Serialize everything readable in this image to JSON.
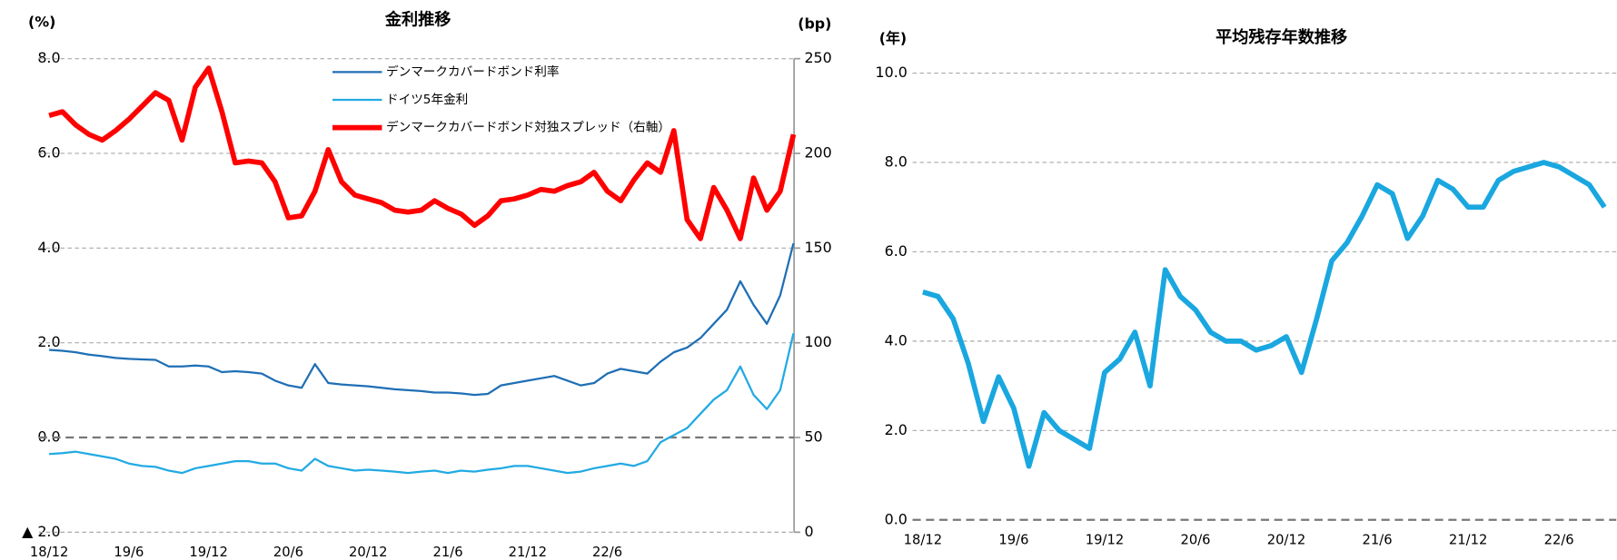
{
  "chart_data": [
    {
      "type": "line",
      "title": "金利推移",
      "y_label": "(%)",
      "y2_label": "(bp)",
      "categories": [
        "18/12",
        null,
        null,
        null,
        null,
        null,
        "19/6",
        null,
        null,
        null,
        null,
        null,
        "19/12",
        null,
        null,
        null,
        null,
        null,
        "20/6",
        null,
        null,
        null,
        null,
        null,
        "20/12",
        null,
        null,
        null,
        null,
        null,
        "21/6",
        null,
        null,
        null,
        null,
        null,
        "21/12",
        null,
        null,
        null,
        null,
        null,
        "22/6",
        null,
        null,
        null,
        null,
        null,
        null,
        null,
        null,
        null,
        null,
        null,
        null,
        null,
        null
      ],
      "series": [
        {
          "name": "デンマークカバードボンド利率",
          "color": "#1f6fb5",
          "width": 2,
          "values": [
            1.85,
            1.83,
            1.8,
            1.75,
            1.72,
            1.68,
            1.66,
            1.65,
            1.64,
            1.5,
            1.5,
            1.52,
            1.5,
            1.38,
            1.4,
            1.38,
            1.35,
            1.2,
            1.1,
            1.05,
            1.55,
            1.15,
            1.12,
            1.1,
            1.08,
            1.05,
            1.02,
            1.0,
            0.98,
            0.95,
            0.95,
            0.93,
            0.9,
            0.92,
            1.1,
            1.15,
            1.2,
            1.25,
            1.3,
            1.2,
            1.1,
            1.15,
            1.35,
            1.45,
            1.4,
            1.35,
            1.6,
            1.8,
            1.9,
            2.1,
            2.4,
            2.7,
            3.3,
            2.8,
            2.4,
            3.0,
            4.1
          ]
        },
        {
          "name": "ドイツ5年金利",
          "color": "#22aae3",
          "width": 2,
          "values": [
            -0.35,
            -0.33,
            -0.3,
            -0.35,
            -0.4,
            -0.45,
            -0.55,
            -0.6,
            -0.62,
            -0.7,
            -0.75,
            -0.65,
            -0.6,
            -0.55,
            -0.5,
            -0.5,
            -0.55,
            -0.55,
            -0.65,
            -0.7,
            -0.45,
            -0.6,
            -0.65,
            -0.7,
            -0.68,
            -0.7,
            -0.72,
            -0.75,
            -0.72,
            -0.7,
            -0.75,
            -0.7,
            -0.72,
            -0.68,
            -0.65,
            -0.6,
            -0.6,
            -0.65,
            -0.7,
            -0.75,
            -0.72,
            -0.65,
            -0.6,
            -0.55,
            -0.6,
            -0.5,
            -0.1,
            0.05,
            0.2,
            0.5,
            0.8,
            1.0,
            1.5,
            0.9,
            0.6,
            1.0,
            2.2
          ]
        },
        {
          "name": "デンマークカバードボンド対独スプレッド（右軸）",
          "color": "#ff0000",
          "width": 5,
          "axis": "y2",
          "values": [
            220,
            222,
            215,
            210,
            207,
            212,
            218,
            225,
            232,
            228,
            207,
            235,
            245,
            222,
            195,
            196,
            195,
            185,
            166,
            167,
            180,
            202,
            185,
            178,
            176,
            174,
            170,
            169,
            170,
            175,
            171,
            168,
            162,
            167,
            175,
            176,
            178,
            181,
            180,
            183,
            185,
            190,
            180,
            175,
            186,
            195,
            190,
            212,
            165,
            155,
            182,
            170,
            155,
            187,
            170,
            180,
            210
          ]
        }
      ],
      "ylim": [
        -2,
        8
      ],
      "yticks": [
        {
          "value": -2,
          "label": "▲ 2.0"
        },
        {
          "value": 0,
          "label": "0.0"
        },
        {
          "value": 2,
          "label": "2.0"
        },
        {
          "value": 4,
          "label": "4.0"
        },
        {
          "value": 6,
          "label": "6.0"
        },
        {
          "value": 8,
          "label": "8.0"
        }
      ],
      "y2lim": [
        0,
        250
      ],
      "y2ticks": [
        0,
        50,
        100,
        150,
        200,
        250
      ],
      "grid": true,
      "legend": "top"
    },
    {
      "type": "line",
      "title": "平均残存年数推移",
      "y_label": "(年)",
      "categories": [
        "18/12",
        null,
        null,
        null,
        null,
        null,
        "19/6",
        null,
        null,
        null,
        null,
        null,
        "19/12",
        null,
        null,
        null,
        null,
        null,
        "20/6",
        null,
        null,
        null,
        null,
        null,
        "20/12",
        null,
        null,
        null,
        null,
        null,
        "21/6",
        null,
        null,
        null,
        null,
        null,
        "21/12",
        null,
        null,
        null,
        null,
        null,
        "22/6",
        null,
        null,
        null
      ],
      "series": [
        {
          "color": "#1aa7e0",
          "width": 5,
          "values": [
            5.1,
            5.0,
            4.5,
            3.5,
            2.2,
            3.2,
            2.5,
            1.2,
            2.4,
            2.0,
            1.8,
            1.6,
            3.3,
            3.6,
            4.2,
            3.0,
            5.6,
            5.0,
            4.7,
            4.2,
            4.0,
            4.0,
            3.8,
            3.9,
            4.1,
            3.3,
            4.5,
            5.8,
            6.2,
            6.8,
            7.5,
            7.3,
            6.3,
            6.8,
            7.6,
            7.4,
            7.0,
            7.0,
            7.6,
            7.8,
            7.9,
            8.0,
            7.9,
            7.7,
            7.5,
            7.0
          ]
        }
      ],
      "ylim": [
        0,
        10
      ],
      "yticks": [
        {
          "value": 0,
          "label": "0.0"
        },
        {
          "value": 2,
          "label": "2.0"
        },
        {
          "value": 4,
          "label": "4.0"
        },
        {
          "value": 6,
          "label": "6.0"
        },
        {
          "value": 8,
          "label": "8.0"
        },
        {
          "value": 10,
          "label": "10.0"
        }
      ],
      "grid": true
    }
  ]
}
